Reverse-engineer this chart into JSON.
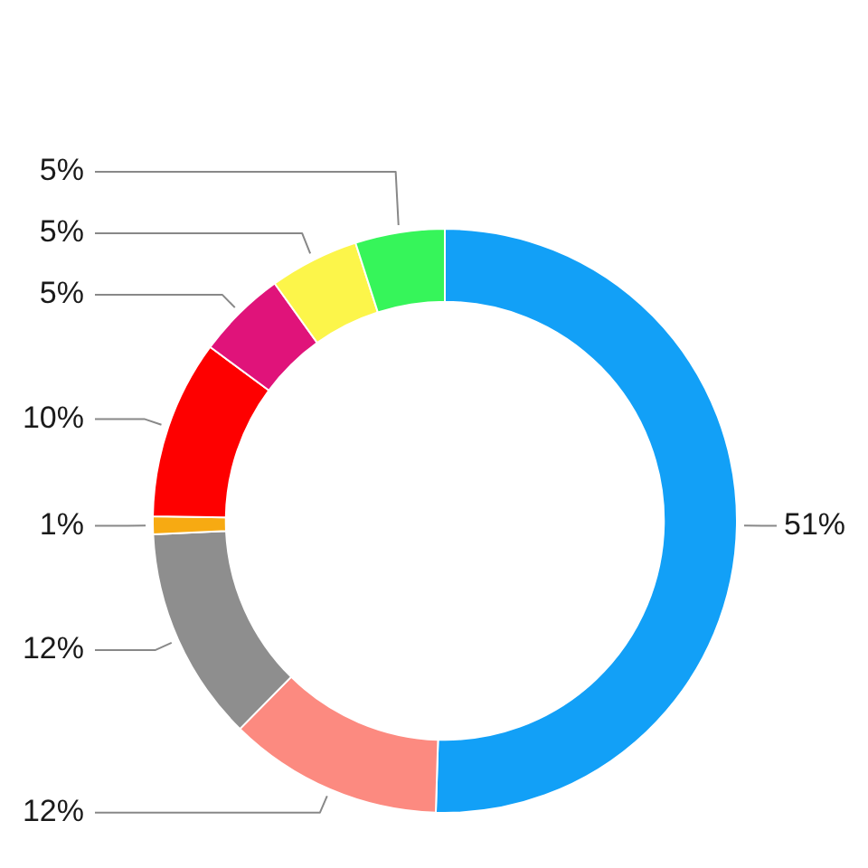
{
  "chart_data": {
    "type": "donut",
    "categories": [
      null,
      null,
      null,
      null,
      null,
      null,
      null,
      null
    ],
    "values": [
      51,
      12,
      12,
      1,
      10,
      5,
      5,
      5
    ],
    "value_labels": [
      "51%",
      "12%",
      "12%",
      "1%",
      "10%",
      "5%",
      "5%",
      "5%"
    ],
    "colors": [
      "#12a0f7",
      "#fc8a80",
      "#8e8e8e",
      "#f7aa12",
      "#fe0000",
      "#e0137a",
      "#fcf54a",
      "#36f55a"
    ]
  }
}
